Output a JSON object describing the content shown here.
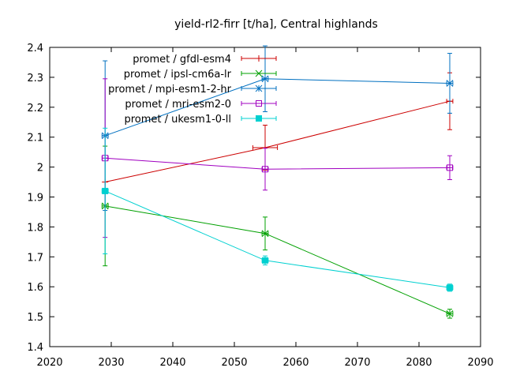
{
  "chart_data": {
    "type": "line",
    "title": "yield-rl2-firr [t/ha], Central highlands",
    "xlabel": "",
    "ylabel": "",
    "xlim": [
      2020,
      2090
    ],
    "ylim": [
      1.4,
      2.4
    ],
    "xticks": [
      2020,
      2030,
      2040,
      2050,
      2060,
      2070,
      2080,
      2090
    ],
    "yticks": [
      1.4,
      1.5,
      1.6,
      1.7,
      1.8,
      1.9,
      2.0,
      2.1,
      2.2,
      2.3,
      2.4
    ],
    "ytick_labels": [
      "1.4",
      "1.5",
      "1.6",
      "1.7",
      "1.8",
      "1.9",
      "2",
      "2.1",
      "2.2",
      "2.3",
      "2.4"
    ],
    "legend_position": "top-left",
    "grid": false,
    "series": [
      {
        "name": "promet / gfdl-esm4",
        "color": "#cc0000",
        "marker": "plus",
        "x": [
          2029,
          2055,
          2085
        ],
        "y": [
          1.95,
          2.065,
          2.22
        ],
        "yerr": [
          0.0,
          0.075,
          0.095
        ],
        "xerr": [
          0.0,
          2.0,
          0.5
        ]
      },
      {
        "name": "promet / ipsl-cm6a-lr",
        "color": "#00a000",
        "marker": "x",
        "x": [
          2029,
          2055,
          2085
        ],
        "y": [
          1.87,
          1.778,
          1.51
        ],
        "yerr": [
          0.2,
          0.055,
          0.015
        ],
        "xerr": [
          0.5,
          0.5,
          0.5
        ]
      },
      {
        "name": "promet / mpi-esm1-2-hr",
        "color": "#0070c0",
        "marker": "star",
        "x": [
          2029,
          2055,
          2085
        ],
        "y": [
          2.105,
          2.295,
          2.28
        ],
        "yerr": [
          0.25,
          0.11,
          0.1
        ],
        "xerr": [
          0.5,
          0.5,
          0.5
        ]
      },
      {
        "name": "promet / mri-esm2-0",
        "color": "#a000c0",
        "marker": "square-open",
        "x": [
          2029,
          2055,
          2085
        ],
        "y": [
          2.03,
          1.993,
          1.998
        ],
        "yerr": [
          0.265,
          0.07,
          0.04
        ],
        "xerr": [
          0.5,
          0.5,
          0.5
        ]
      },
      {
        "name": "promet / ukesm1-0-ll",
        "color": "#00d0d0",
        "marker": "square-filled",
        "x": [
          2029,
          2055,
          2085
        ],
        "y": [
          1.92,
          1.688,
          1.597
        ],
        "yerr": [
          0.21,
          0.015,
          0.012
        ],
        "xerr": [
          0.5,
          0.5,
          0.5
        ]
      }
    ]
  }
}
